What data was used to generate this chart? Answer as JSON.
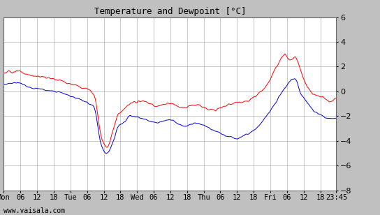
{
  "title": "Temperature and Dewpoint [°C]",
  "ylim": [
    -8,
    6
  ],
  "yticks": [
    -8,
    -6,
    -4,
    -2,
    0,
    2,
    4,
    6
  ],
  "bg_color": "#c0c0c0",
  "plot_bg": "#ffffff",
  "grid_color": "#b0b0b0",
  "temp_color": "#ff0000",
  "dew_color": "#0000cc",
  "watermark": "www.vaisala.com",
  "xtick_labels": [
    "Mon",
    "06",
    "12",
    "18",
    "Tue",
    "06",
    "12",
    "18",
    "Wed",
    "06",
    "12",
    "18",
    "Thu",
    "06",
    "12",
    "18",
    "Fri",
    "06",
    "12",
    "18",
    "23:45"
  ],
  "n_points": 1200,
  "total_hours": 119.75,
  "tick_hours": [
    0,
    6,
    12,
    18,
    24,
    30,
    36,
    42,
    48,
    54,
    60,
    66,
    72,
    78,
    84,
    90,
    96,
    102,
    108,
    114,
    119.75
  ]
}
